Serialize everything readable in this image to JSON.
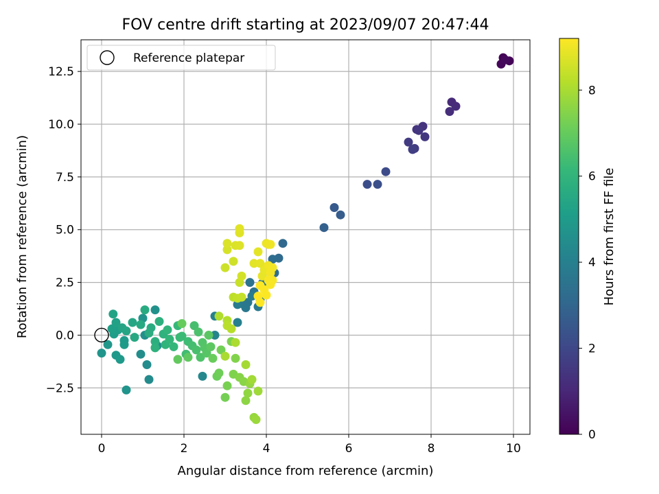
{
  "chart_data": {
    "type": "scatter",
    "title": "FOV centre drift starting at 2023/09/07 20:47:44",
    "xlabel": "Angular distance from reference (arcmin)",
    "ylabel": "Rotation from reference (arcmin)",
    "xlim": [
      -0.5,
      10.4
    ],
    "ylim": [
      -4.7,
      14.0
    ],
    "xticks": [
      0,
      2,
      4,
      6,
      8,
      10
    ],
    "yticks": [
      -2.5,
      0.0,
      2.5,
      5.0,
      7.5,
      10.0,
      12.5
    ],
    "xtick_labels": [
      "0",
      "2",
      "4",
      "6",
      "8",
      "10"
    ],
    "ytick_labels": [
      "−2.5",
      "0.0",
      "2.5",
      "5.0",
      "7.5",
      "10.0",
      "12.5"
    ],
    "grid": true,
    "legend": {
      "location": "upper-left",
      "entries": [
        "Reference platepar"
      ]
    },
    "reference_point": {
      "x": 0,
      "y": 0,
      "marker": "open-circle"
    },
    "colorbar": {
      "label": "Hours from first FF file",
      "range": [
        0,
        9.2
      ],
      "ticks": [
        0,
        2,
        4,
        6,
        8
      ],
      "tick_labels": [
        "0",
        "2",
        "4",
        "6",
        "8"
      ],
      "colormap": "viridis",
      "colormap_stops": [
        "#440154",
        "#482878",
        "#3e4989",
        "#31688e",
        "#26828e",
        "#1f9e89",
        "#35b779",
        "#6ece58",
        "#b5de2b",
        "#fde725"
      ]
    },
    "points": [
      {
        "x": 9.75,
        "y": 13.15,
        "hours": 0.05
      },
      {
        "x": 9.9,
        "y": 13.0,
        "hours": 0.1
      },
      {
        "x": 9.7,
        "y": 12.85,
        "hours": 0.15
      },
      {
        "x": 9.8,
        "y": 13.05,
        "hours": 0.2
      },
      {
        "x": 8.5,
        "y": 11.05,
        "hours": 1.1
      },
      {
        "x": 8.6,
        "y": 10.85,
        "hours": 1.15
      },
      {
        "x": 8.45,
        "y": 10.6,
        "hours": 1.2
      },
      {
        "x": 7.8,
        "y": 9.9,
        "hours": 1.35
      },
      {
        "x": 7.65,
        "y": 9.75,
        "hours": 1.4
      },
      {
        "x": 7.7,
        "y": 9.7,
        "hours": 1.45
      },
      {
        "x": 7.85,
        "y": 9.4,
        "hours": 1.5
      },
      {
        "x": 7.45,
        "y": 9.15,
        "hours": 1.6
      },
      {
        "x": 7.6,
        "y": 8.85,
        "hours": 1.65
      },
      {
        "x": 7.55,
        "y": 8.8,
        "hours": 1.7
      },
      {
        "x": 6.9,
        "y": 7.75,
        "hours": 2.1
      },
      {
        "x": 6.45,
        "y": 7.15,
        "hours": 2.2
      },
      {
        "x": 6.7,
        "y": 7.15,
        "hours": 2.25
      },
      {
        "x": 5.65,
        "y": 6.05,
        "hours": 2.6
      },
      {
        "x": 5.8,
        "y": 5.7,
        "hours": 2.7
      },
      {
        "x": 5.4,
        "y": 5.1,
        "hours": 2.8
      },
      {
        "x": 4.4,
        "y": 4.35,
        "hours": 3.1
      },
      {
        "x": 4.3,
        "y": 3.65,
        "hours": 3.2
      },
      {
        "x": 4.15,
        "y": 3.6,
        "hours": 3.25
      },
      {
        "x": 4.2,
        "y": 2.95,
        "hours": 3.3
      },
      {
        "x": 3.9,
        "y": 2.45,
        "hours": 3.4
      },
      {
        "x": 3.6,
        "y": 2.5,
        "hours": 3.5
      },
      {
        "x": 3.7,
        "y": 2.05,
        "hours": 3.55
      },
      {
        "x": 3.85,
        "y": 1.7,
        "hours": 3.6
      },
      {
        "x": 3.55,
        "y": 1.55,
        "hours": 3.62
      },
      {
        "x": 3.4,
        "y": 1.5,
        "hours": 3.65
      },
      {
        "x": 3.5,
        "y": 1.3,
        "hours": 3.7
      },
      {
        "x": 3.8,
        "y": 1.35,
        "hours": 3.75
      },
      {
        "x": 3.3,
        "y": 1.45,
        "hours": 3.8
      },
      {
        "x": 3.65,
        "y": 1.85,
        "hours": 3.85
      },
      {
        "x": 3.3,
        "y": 0.6,
        "hours": 4.0
      },
      {
        "x": 2.75,
        "y": 0.9,
        "hours": 4.05
      },
      {
        "x": 2.75,
        "y": 0.0,
        "hours": 4.2
      },
      {
        "x": 2.45,
        "y": -1.95,
        "hours": 4.3
      },
      {
        "x": 1.15,
        "y": -2.1,
        "hours": 4.4
      },
      {
        "x": 1.1,
        "y": -1.4,
        "hours": 4.45
      },
      {
        "x": 0.95,
        "y": -0.9,
        "hours": 4.5
      },
      {
        "x": 1.35,
        "y": -0.5,
        "hours": 4.55
      },
      {
        "x": 1.05,
        "y": 0.0,
        "hours": 4.6
      },
      {
        "x": 1.3,
        "y": 1.2,
        "hours": 4.65
      },
      {
        "x": 1.0,
        "y": 0.8,
        "hours": 4.7
      },
      {
        "x": 0.6,
        "y": -2.6,
        "hours": 4.75
      },
      {
        "x": 0.0,
        "y": -0.85,
        "hours": 4.8
      },
      {
        "x": 0.15,
        "y": -0.45,
        "hours": 4.85
      },
      {
        "x": 0.35,
        "y": -0.95,
        "hours": 4.9
      },
      {
        "x": 0.45,
        "y": -1.15,
        "hours": 4.95
      },
      {
        "x": 0.55,
        "y": -0.25,
        "hours": 5.0
      },
      {
        "x": 0.55,
        "y": -0.45,
        "hours": 5.05
      },
      {
        "x": 0.3,
        "y": 0.05,
        "hours": 5.1
      },
      {
        "x": 0.4,
        "y": 0.25,
        "hours": 5.15
      },
      {
        "x": 0.25,
        "y": 0.3,
        "hours": 5.2
      },
      {
        "x": 0.35,
        "y": 0.6,
        "hours": 5.25
      },
      {
        "x": 0.28,
        "y": 1.0,
        "hours": 5.3
      },
      {
        "x": 0.5,
        "y": 0.35,
        "hours": 5.35
      },
      {
        "x": 0.6,
        "y": 0.2,
        "hours": 5.4
      },
      {
        "x": 0.75,
        "y": 0.6,
        "hours": 5.45
      },
      {
        "x": 0.8,
        "y": -0.1,
        "hours": 5.5
      },
      {
        "x": 0.95,
        "y": 0.5,
        "hours": 5.55
      },
      {
        "x": 1.05,
        "y": 1.2,
        "hours": 5.6
      },
      {
        "x": 1.2,
        "y": 0.35,
        "hours": 5.65
      },
      {
        "x": 1.15,
        "y": 0.1,
        "hours": 5.7
      },
      {
        "x": 1.3,
        "y": -0.3,
        "hours": 5.75
      },
      {
        "x": 1.4,
        "y": 0.65,
        "hours": 5.8
      },
      {
        "x": 1.3,
        "y": -0.6,
        "hours": 5.85
      },
      {
        "x": 1.5,
        "y": 0.05,
        "hours": 5.9
      },
      {
        "x": 1.55,
        "y": -0.45,
        "hours": 5.95
      },
      {
        "x": 1.6,
        "y": 0.25,
        "hours": 6.0
      },
      {
        "x": 1.65,
        "y": -0.2,
        "hours": 6.05
      },
      {
        "x": 1.75,
        "y": -0.55,
        "hours": 6.1
      },
      {
        "x": 1.85,
        "y": 0.45,
        "hours": 6.15
      },
      {
        "x": 1.9,
        "y": -0.1,
        "hours": 6.2
      },
      {
        "x": 1.95,
        "y": -0.05,
        "hours": 6.25
      },
      {
        "x": 2.1,
        "y": -0.3,
        "hours": 6.3
      },
      {
        "x": 2.05,
        "y": -0.9,
        "hours": 6.35
      },
      {
        "x": 2.2,
        "y": -0.5,
        "hours": 6.4
      },
      {
        "x": 2.25,
        "y": 0.45,
        "hours": 6.45
      },
      {
        "x": 2.3,
        "y": -0.7,
        "hours": 6.5
      },
      {
        "x": 2.35,
        "y": 0.15,
        "hours": 6.55
      },
      {
        "x": 2.4,
        "y": -1.05,
        "hours": 6.6
      },
      {
        "x": 2.45,
        "y": -0.35,
        "hours": 6.65
      },
      {
        "x": 2.5,
        "y": -0.6,
        "hours": 6.7
      },
      {
        "x": 2.55,
        "y": -0.85,
        "hours": 6.75
      },
      {
        "x": 2.6,
        "y": 0.0,
        "hours": 6.8
      },
      {
        "x": 2.65,
        "y": -0.55,
        "hours": 6.85
      },
      {
        "x": 2.1,
        "y": -1.05,
        "hours": 6.9
      },
      {
        "x": 1.85,
        "y": -1.15,
        "hours": 6.95
      },
      {
        "x": 1.95,
        "y": 0.55,
        "hours": 7.0
      },
      {
        "x": 2.7,
        "y": -1.1,
        "hours": 7.05
      },
      {
        "x": 2.8,
        "y": -1.95,
        "hours": 7.1
      },
      {
        "x": 2.85,
        "y": -1.8,
        "hours": 7.15
      },
      {
        "x": 2.9,
        "y": -0.7,
        "hours": 7.2
      },
      {
        "x": 3.0,
        "y": -2.95,
        "hours": 7.25
      },
      {
        "x": 3.05,
        "y": -2.4,
        "hours": 7.3
      },
      {
        "x": 3.15,
        "y": -0.3,
        "hours": 7.35
      },
      {
        "x": 3.2,
        "y": -1.85,
        "hours": 7.4
      },
      {
        "x": 3.25,
        "y": -1.1,
        "hours": 7.45
      },
      {
        "x": 3.35,
        "y": -2.0,
        "hours": 7.5
      },
      {
        "x": 3.45,
        "y": -2.2,
        "hours": 7.55
      },
      {
        "x": 3.5,
        "y": -3.1,
        "hours": 7.6
      },
      {
        "x": 3.55,
        "y": -2.75,
        "hours": 7.65
      },
      {
        "x": 3.6,
        "y": -2.3,
        "hours": 7.7
      },
      {
        "x": 3.7,
        "y": -3.9,
        "hours": 7.75
      },
      {
        "x": 3.75,
        "y": -4.0,
        "hours": 7.8
      },
      {
        "x": 3.8,
        "y": -2.65,
        "hours": 7.85
      },
      {
        "x": 3.65,
        "y": -2.1,
        "hours": 7.9
      },
      {
        "x": 3.5,
        "y": -1.4,
        "hours": 7.95
      },
      {
        "x": 3.0,
        "y": -1.0,
        "hours": 8.0
      },
      {
        "x": 3.25,
        "y": -0.35,
        "hours": 8.05
      },
      {
        "x": 2.85,
        "y": 0.9,
        "hours": 8.1
      },
      {
        "x": 3.05,
        "y": 0.7,
        "hours": 8.15
      },
      {
        "x": 3.15,
        "y": 0.3,
        "hours": 8.2
      },
      {
        "x": 3.05,
        "y": 0.45,
        "hours": 8.25
      },
      {
        "x": 3.2,
        "y": 1.8,
        "hours": 8.3
      },
      {
        "x": 3.3,
        "y": 1.75,
        "hours": 8.35
      },
      {
        "x": 3.4,
        "y": 1.8,
        "hours": 8.4
      },
      {
        "x": 3.35,
        "y": 2.5,
        "hours": 8.45
      },
      {
        "x": 3.0,
        "y": 3.2,
        "hours": 8.5
      },
      {
        "x": 3.2,
        "y": 3.5,
        "hours": 8.55
      },
      {
        "x": 3.4,
        "y": 2.8,
        "hours": 8.6
      },
      {
        "x": 3.05,
        "y": 4.05,
        "hours": 8.65
      },
      {
        "x": 3.05,
        "y": 4.35,
        "hours": 8.7
      },
      {
        "x": 3.25,
        "y": 4.25,
        "hours": 8.72
      },
      {
        "x": 3.35,
        "y": 4.25,
        "hours": 8.75
      },
      {
        "x": 3.35,
        "y": 4.85,
        "hours": 8.78
      },
      {
        "x": 3.35,
        "y": 5.05,
        "hours": 8.8
      },
      {
        "x": 3.7,
        "y": 3.4,
        "hours": 8.82
      },
      {
        "x": 3.8,
        "y": 3.95,
        "hours": 8.85
      },
      {
        "x": 3.85,
        "y": 3.4,
        "hours": 8.87
      },
      {
        "x": 3.9,
        "y": 2.8,
        "hours": 8.9
      },
      {
        "x": 3.95,
        "y": 3.1,
        "hours": 8.92
      },
      {
        "x": 4.0,
        "y": 4.35,
        "hours": 8.95
      },
      {
        "x": 4.05,
        "y": 4.3,
        "hours": 8.97
      },
      {
        "x": 4.1,
        "y": 4.3,
        "hours": 9.0
      },
      {
        "x": 4.05,
        "y": 3.3,
        "hours": 9.02
      },
      {
        "x": 4.15,
        "y": 3.2,
        "hours": 9.05
      },
      {
        "x": 4.1,
        "y": 2.95,
        "hours": 9.07
      },
      {
        "x": 4.05,
        "y": 2.6,
        "hours": 9.1
      },
      {
        "x": 4.15,
        "y": 2.6,
        "hours": 9.12
      },
      {
        "x": 4.1,
        "y": 2.4,
        "hours": 9.15
      },
      {
        "x": 3.85,
        "y": 2.35,
        "hours": 9.17
      },
      {
        "x": 3.95,
        "y": 2.15,
        "hours": 9.18
      },
      {
        "x": 4.0,
        "y": 1.9,
        "hours": 9.19
      },
      {
        "x": 3.8,
        "y": 1.85,
        "hours": 9.2
      },
      {
        "x": 3.85,
        "y": 1.55,
        "hours": 9.2
      }
    ]
  }
}
